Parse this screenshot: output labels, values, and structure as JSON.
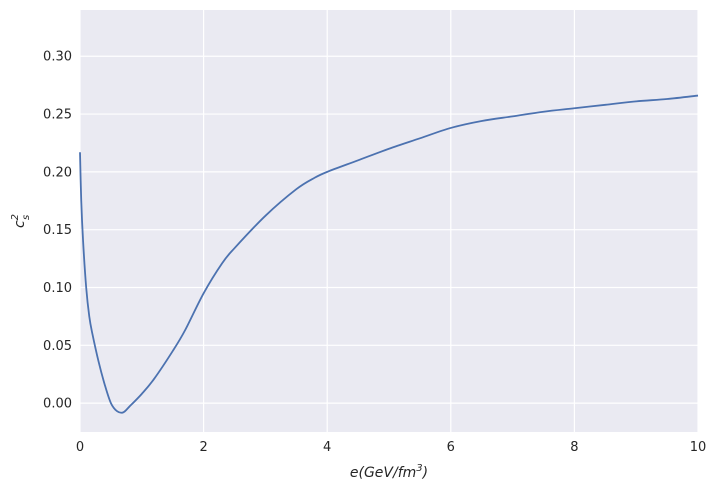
{
  "chart_data": {
    "type": "line",
    "title": "",
    "xlabel": {
      "base": "e(GeV/fm",
      "sup": "3",
      "end": ")"
    },
    "ylabel": {
      "base": "c",
      "sup": "2",
      "sub": "s"
    },
    "xlim": [
      0,
      10
    ],
    "ylim": [
      -0.025,
      0.34
    ],
    "xticks": [
      0,
      2,
      4,
      6,
      8,
      10
    ],
    "xtick_labels": [
      "0",
      "2",
      "4",
      "6",
      "8",
      "10"
    ],
    "yticks": [
      0.0,
      0.05,
      0.1,
      0.15,
      0.2,
      0.25,
      0.3
    ],
    "ytick_labels": [
      "0.00",
      "0.05",
      "0.10",
      "0.15",
      "0.20",
      "0.25",
      "0.30"
    ],
    "grid": true,
    "colors": {
      "background": "#eaeaf2",
      "line": "#4c72b0",
      "grid": "#ffffff"
    },
    "series": [
      {
        "x": [
          0.0,
          0.02,
          0.05,
          0.1,
          0.15,
          0.2,
          0.3,
          0.4,
          0.5,
          0.6,
          0.7,
          0.8,
          1.0,
          1.2,
          1.5,
          1.7,
          2.0,
          2.3,
          2.5,
          3.0,
          3.5,
          3.8,
          4.0,
          4.5,
          5.0,
          5.5,
          6.0,
          6.5,
          7.0,
          7.5,
          8.0,
          8.5,
          9.0,
          9.5,
          10.0
        ],
        "y": [
          0.217,
          0.175,
          0.14,
          0.1,
          0.075,
          0.06,
          0.036,
          0.016,
          0.0,
          -0.007,
          -0.008,
          -0.003,
          0.008,
          0.021,
          0.045,
          0.063,
          0.095,
          0.121,
          0.134,
          0.162,
          0.185,
          0.195,
          0.2,
          0.21,
          0.22,
          0.229,
          0.238,
          0.244,
          0.248,
          0.252,
          0.255,
          0.258,
          0.261,
          0.263,
          0.266
        ]
      }
    ]
  }
}
